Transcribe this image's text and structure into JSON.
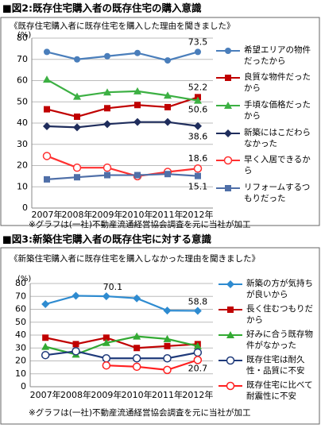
{
  "charts": [
    {
      "chart_data": {
        "type": "line",
        "title": "■図2:既存住宅購入者の既存住宅の購入意識",
        "subtitle": "《既存住宅購入者に既存住宅を購入した理由を聞きました》",
        "ylabel": "(%)",
        "categories": [
          "2007年",
          "2008年",
          "2009年",
          "2010年",
          "2011年",
          "2012年"
        ],
        "ylim": [
          0,
          80
        ],
        "yticks": [
          0,
          10,
          20,
          30,
          40,
          50,
          60,
          70,
          80
        ],
        "grid": true,
        "series": [
          {
            "name": "希望エリアの物件だったから",
            "color": "#4a7ebb",
            "marker": "circle",
            "values": [
              73.5,
              70,
              71.5,
              73,
              69.5,
              73.5
            ]
          },
          {
            "name": "良質な物件だったから",
            "color": "#c00000",
            "marker": "square",
            "values": [
              46.5,
              43,
              47,
              48.5,
              47.5,
              52.2
            ]
          },
          {
            "name": "手頃な価格だったから",
            "color": "#3cb043",
            "marker": "triangle",
            "values": [
              60.5,
              52.5,
              54.5,
              55,
              53,
              50.6
            ]
          },
          {
            "name": "新築にはこだわらなかった",
            "color": "#1f2d5c",
            "marker": "diamond",
            "values": [
              38.5,
              38,
              39.5,
              40.5,
              40.5,
              38.6
            ]
          },
          {
            "name": "早く入居できるから",
            "color": "#ff3030",
            "marker": "open-circle",
            "values": [
              24.5,
              19,
              19,
              15,
              17,
              18.6
            ]
          },
          {
            "name": "リフォームするつもりだった",
            "color": "#4f6fa8",
            "marker": "square",
            "values": [
              13.5,
              14.5,
              15.5,
              15.5,
              16,
              15.1
            ]
          }
        ],
        "footnote": "※グラフは(一社)不動産流通経営協会調査を元に当社が加工"
      }
    },
    {
      "chart_data": {
        "type": "line",
        "title": "■図3:新築住宅購入者の既存住宅に対する意識",
        "subtitle": "《新築住宅購入者に既存住宅を購入しなかった理由を聞きました》",
        "ylabel": "(%)",
        "categories": [
          "2007年",
          "2008年",
          "2009年",
          "2010年",
          "2011年",
          "2012年"
        ],
        "ylim": [
          0,
          80
        ],
        "yticks": [
          0,
          10,
          20,
          30,
          40,
          50,
          60,
          70,
          80
        ],
        "grid": true,
        "series": [
          {
            "name": "新築の方が気持ちが良いから",
            "color": "#2e8bd0",
            "marker": "diamond",
            "values": [
              64,
              70.5,
              70.1,
              68.5,
              59,
              58.8
            ]
          },
          {
            "name": "長く住むつもりだから",
            "color": "#c00000",
            "marker": "square",
            "values": [
              38,
              33,
              38,
              30,
              31.5,
              33
            ]
          },
          {
            "name": "好みに合う既存物件がなかった",
            "color": "#33aa33",
            "marker": "triangle",
            "values": [
              31,
              25,
              34,
              39,
              37,
              31.5
            ]
          },
          {
            "name": "既存住宅は耐久性・品質に不安",
            "color": "#1f3a7a",
            "marker": "open-circle",
            "values": [
              24.5,
              27.5,
              22,
              22,
              22,
              26.5
            ]
          },
          {
            "name": "既存住宅に比べて耐震性に不安",
            "color": "#ff2020",
            "marker": "open-circle",
            "values": [
              null,
              null,
              16.5,
              15.5,
              13,
              20.7
            ]
          }
        ],
        "footnote": "※グラフは(一社)不動産流通経営協会調査を元に当社が加工"
      }
    }
  ]
}
